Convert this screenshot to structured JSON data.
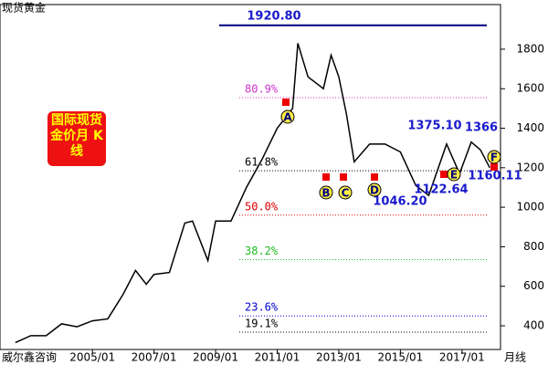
{
  "chart_data": {
    "type": "line",
    "title": "现货黄金",
    "subtitle": "国际现货金价月 K线",
    "source": "威尔鑫咨询",
    "x_label": "月线",
    "x": [
      2002.5,
      2003.0,
      2003.5,
      2004.0,
      2004.5,
      2005.0,
      2005.5,
      2006.0,
      2006.4,
      2006.75,
      2007.0,
      2007.5,
      2008.0,
      2008.25,
      2008.75,
      2009.0,
      2009.5,
      2010.0,
      2010.5,
      2011.0,
      2011.5,
      2011.67,
      2012.0,
      2012.5,
      2012.75,
      2013.0,
      2013.25,
      2013.5,
      2014.0,
      2014.5,
      2015.0,
      2015.5,
      2015.92,
      2016.5,
      2016.92,
      2017.3,
      2017.6,
      2017.9
    ],
    "series": [
      {
        "name": "现货黄金",
        "color": "#000000",
        "values": [
          315,
          350,
          350,
          410,
          395,
          425,
          435,
          560,
          680,
          610,
          660,
          670,
          920,
          930,
          730,
          930,
          930,
          1100,
          1240,
          1400,
          1500,
          1830,
          1660,
          1600,
          1770,
          1660,
          1470,
          1230,
          1320,
          1320,
          1280,
          1110,
          1060,
          1320,
          1170,
          1330,
          1290,
          1200
        ]
      }
    ],
    "xlim": [
      2002.0,
      2018.25
    ],
    "xticks": [
      {
        "value": 2005,
        "label": "2005/01"
      },
      {
        "value": 2007,
        "label": "2007/01"
      },
      {
        "value": 2009,
        "label": "2009/01"
      },
      {
        "value": 2011,
        "label": "2011/01"
      },
      {
        "value": 2013,
        "label": "2013/01"
      },
      {
        "value": 2015,
        "label": "2015/01"
      },
      {
        "value": 2017,
        "label": "2017/01"
      }
    ],
    "ylim": [
      280,
      2026
    ],
    "yticks": [
      400,
      600,
      800,
      1000,
      1200,
      1400,
      1600,
      1800
    ],
    "high_line": {
      "label": "1920.80",
      "value": 1920.8,
      "color": "#000080"
    },
    "levels": [
      {
        "label": "80.9%",
        "value": 1555,
        "color": "#cc33cc"
      },
      {
        "label": "61.8%",
        "value": 1185,
        "color": "#000000"
      },
      {
        "label": "50.0%",
        "value": 960,
        "color": "#dd0000"
      },
      {
        "label": "38.2%",
        "value": 735,
        "color": "#22bb22"
      },
      {
        "label": "23.6%",
        "value": 450,
        "color": "#0000cc"
      },
      {
        "label": "19.1%",
        "value": 368,
        "color": "#000000"
      }
    ],
    "annotations": [
      "1375.10",
      "1366",
      "1046.20",
      "1122.64",
      "1160.11"
    ],
    "markers": [
      "A",
      "B",
      "C",
      "D",
      "E",
      "F"
    ]
  }
}
